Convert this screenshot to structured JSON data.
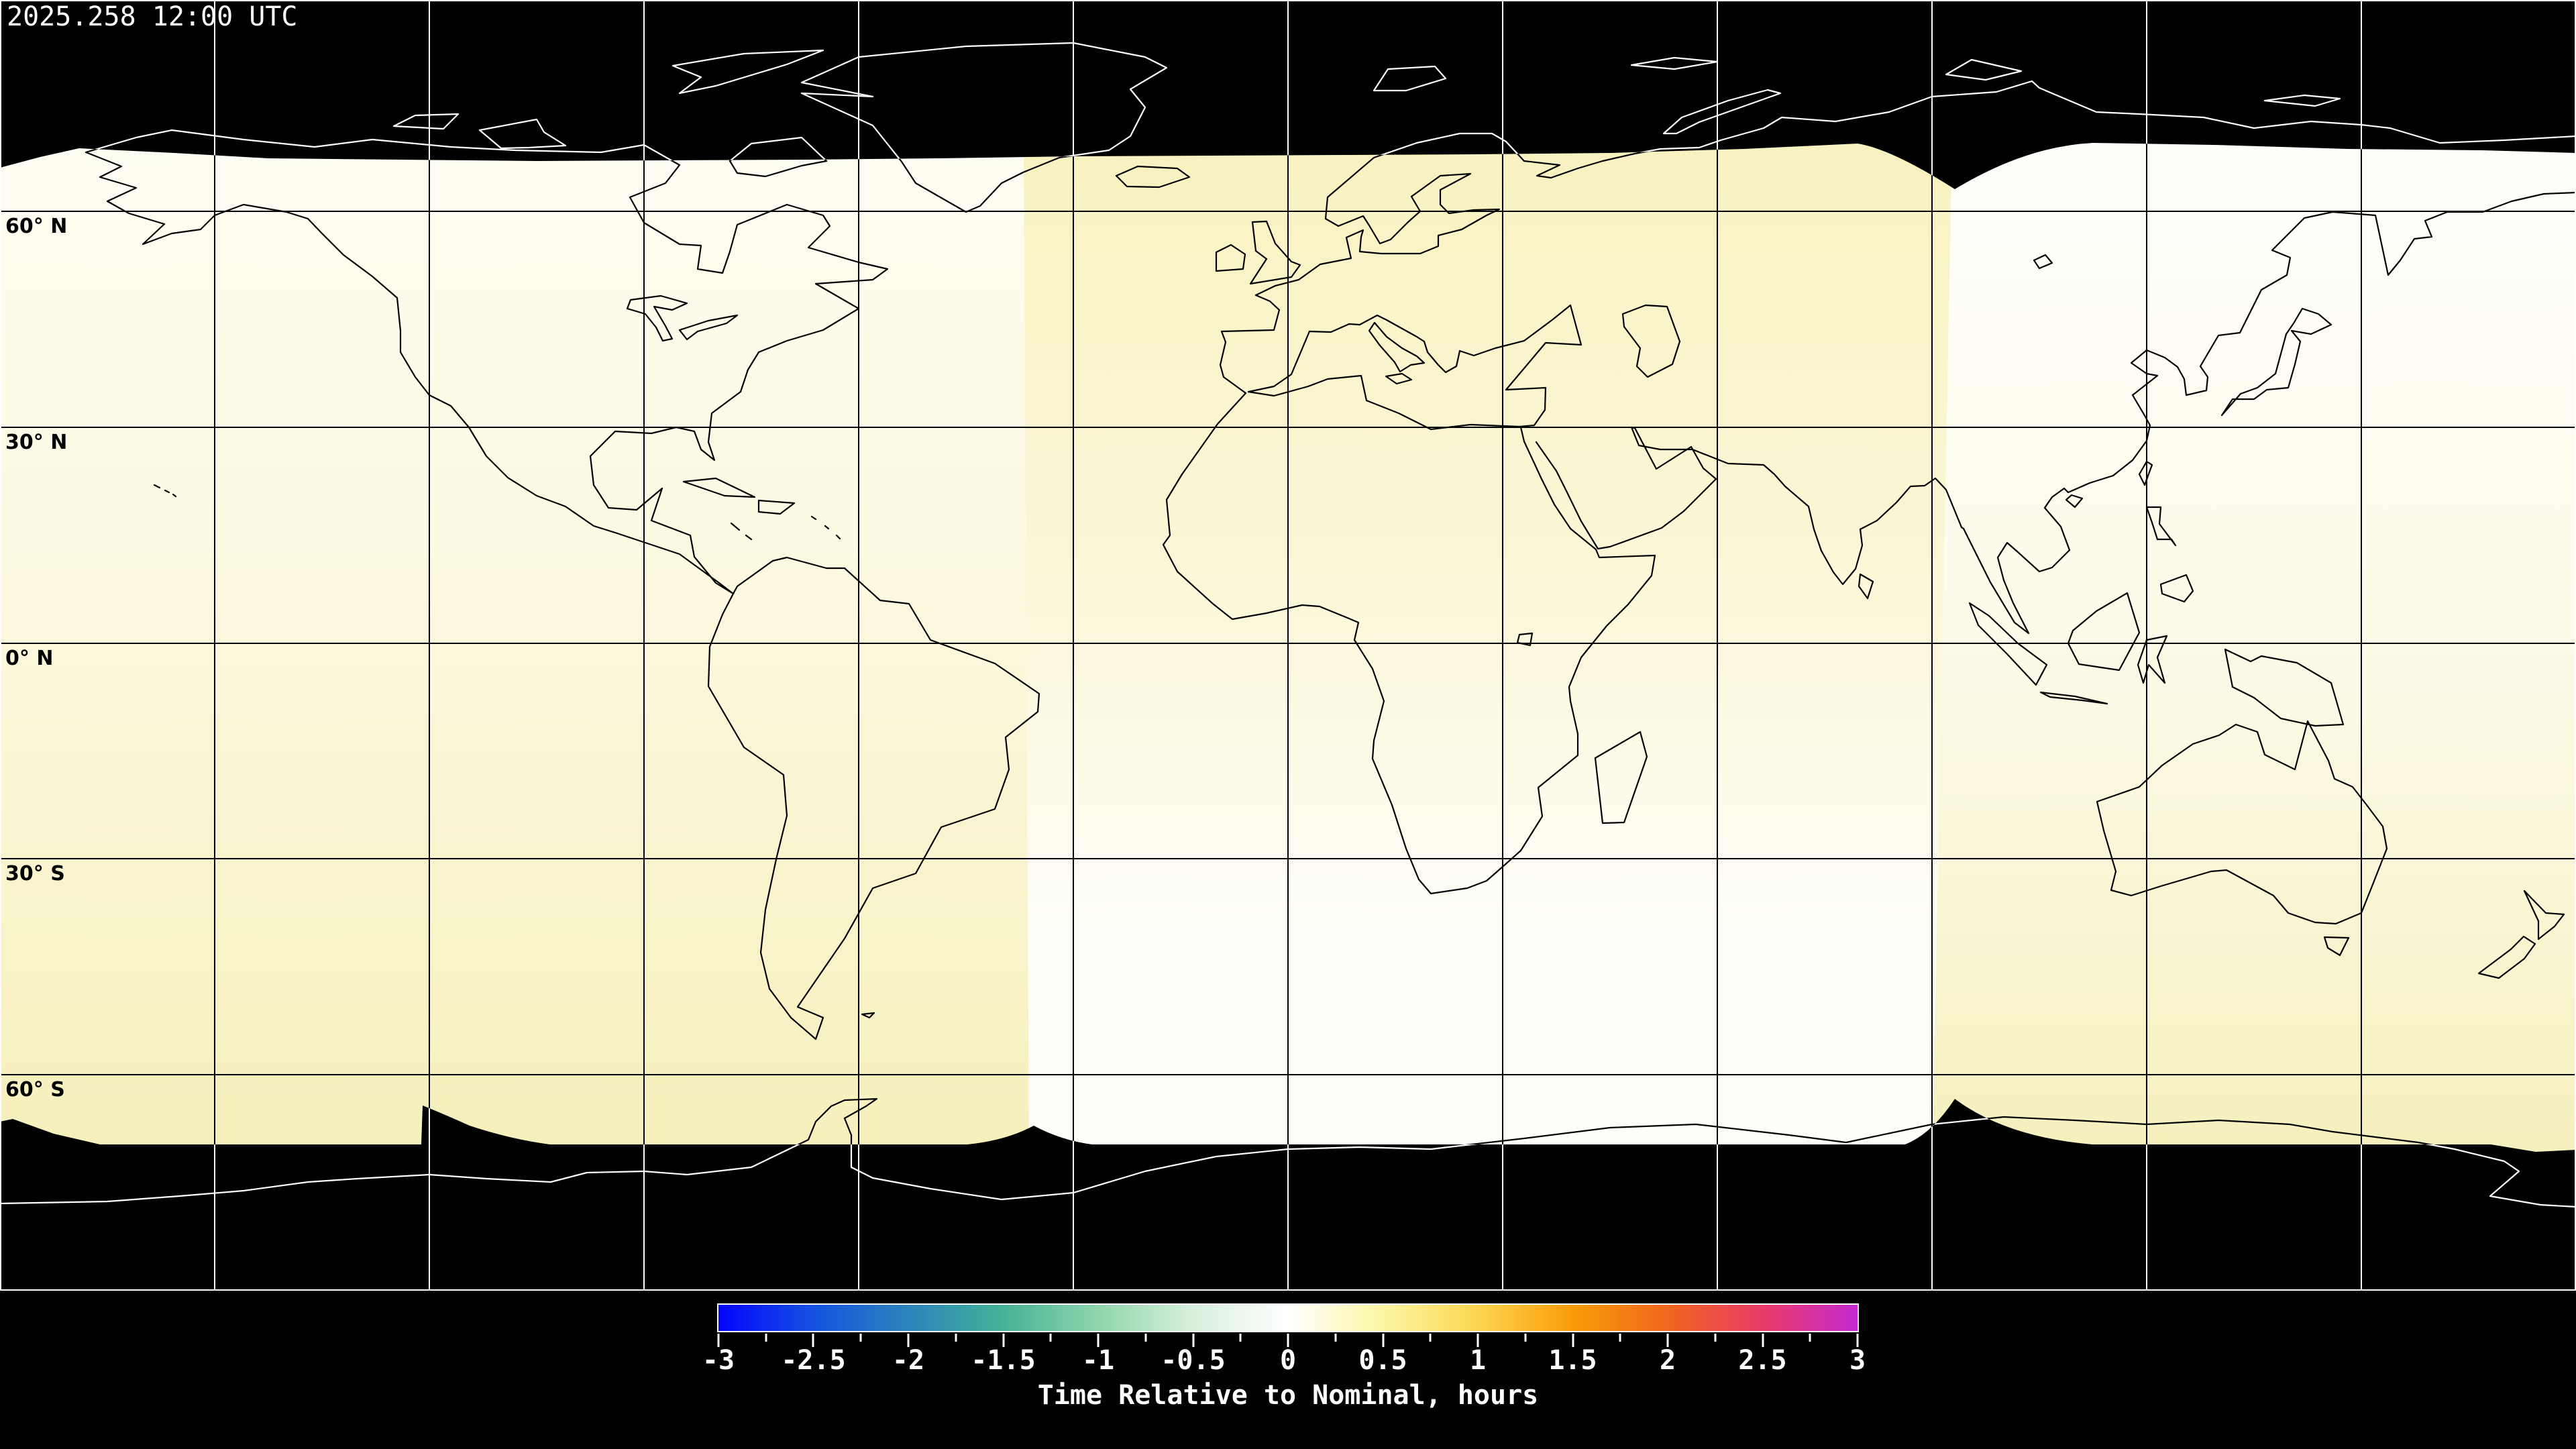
{
  "page": {
    "background": "#000000"
  },
  "header": {
    "timestamp": "2025.258 12:00 UTC"
  },
  "map": {
    "projection": "equirectangular-world",
    "latitude_labels": [
      {
        "text": "60° N"
      },
      {
        "text": "30° N"
      },
      {
        "text": "0° N"
      },
      {
        "text": "30° S"
      },
      {
        "text": "60° S"
      }
    ],
    "grid": {
      "longitude_step_deg": 30,
      "latitude_step_deg": 30
    },
    "colors": {
      "no_data_fill": "#000000",
      "coastline": "#000000",
      "coastline_on_dark": "#ffffff",
      "gridline": "#000000",
      "gridline_on_dark": "#ffffff",
      "frame": "#ffffff",
      "shade_white": "#fffefb",
      "shade_cream": "#fcf9e0",
      "shade_yellow": "#f8f2c0"
    }
  },
  "colorbar": {
    "title": "Time Relative to Nominal, hours",
    "min": -3,
    "max": 3,
    "major_tick_step": 0.5,
    "minor_tick_step": 0.25,
    "tick_labels": [
      "-3",
      "-2.5",
      "-2",
      "-1.5",
      "-1",
      "-0.5",
      "0",
      "0.5",
      "1",
      "1.5",
      "2",
      "2.5",
      "3"
    ],
    "gradient": [
      {
        "v": -3.0,
        "c": "#0404fc"
      },
      {
        "v": -2.5,
        "c": "#1552e2"
      },
      {
        "v": -2.0,
        "c": "#2b84bc"
      },
      {
        "v": -1.5,
        "c": "#46b296"
      },
      {
        "v": -1.0,
        "c": "#8fd6ac"
      },
      {
        "v": -0.5,
        "c": "#d8f0dc"
      },
      {
        "v": 0.0,
        "c": "#ffffff"
      },
      {
        "v": 0.5,
        "c": "#fcf6a4"
      },
      {
        "v": 1.0,
        "c": "#fdd54f"
      },
      {
        "v": 1.5,
        "c": "#f99d08"
      },
      {
        "v": 2.0,
        "c": "#f0661e"
      },
      {
        "v": 2.5,
        "c": "#ea3a68"
      },
      {
        "v": 3.0,
        "c": "#c32ad0"
      }
    ]
  }
}
